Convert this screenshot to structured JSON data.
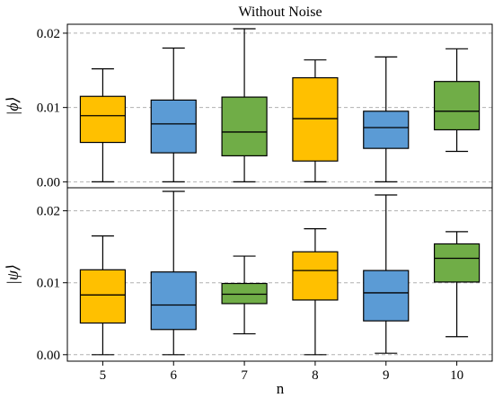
{
  "chart_data": [
    {
      "type": "box",
      "title": "Without Noise",
      "ylabel": "|ϕ⟩",
      "xlabel": "",
      "categories": [
        "5",
        "6",
        "7",
        "8",
        "9",
        "10"
      ],
      "ylim": [
        -0.0008,
        0.0212
      ],
      "yticks": [
        0.0,
        0.01,
        0.02
      ],
      "ytick_labels": [
        "0.00",
        "0.01",
        "0.02"
      ],
      "grid": "y-dashed",
      "boxes": [
        {
          "min": 0.0,
          "q1": 0.0053,
          "median": 0.0089,
          "q3": 0.0115,
          "max": 0.0152
        },
        {
          "min": 0.0,
          "q1": 0.0039,
          "median": 0.0078,
          "q3": 0.011,
          "max": 0.018
        },
        {
          "min": 0.0,
          "q1": 0.0035,
          "median": 0.0067,
          "q3": 0.0114,
          "max": 0.0206
        },
        {
          "min": 0.0,
          "q1": 0.0028,
          "median": 0.0085,
          "q3": 0.014,
          "max": 0.0164
        },
        {
          "min": 0.0,
          "q1": 0.0045,
          "median": 0.0073,
          "q3": 0.0095,
          "max": 0.0168
        },
        {
          "min": 0.0041,
          "q1": 0.007,
          "median": 0.0095,
          "q3": 0.0135,
          "max": 0.0179
        }
      ]
    },
    {
      "type": "box",
      "title": "",
      "ylabel": "|ψ⟩",
      "xlabel": "n",
      "categories": [
        "5",
        "6",
        "7",
        "8",
        "9",
        "10"
      ],
      "ylim": [
        -0.0009,
        0.0232
      ],
      "yticks": [
        0.0,
        0.01,
        0.02
      ],
      "ytick_labels": [
        "0.00",
        "0.01",
        "0.02"
      ],
      "grid": "y-dashed",
      "boxes": [
        {
          "min": 0.0,
          "q1": 0.0044,
          "median": 0.0083,
          "q3": 0.0118,
          "max": 0.0165
        },
        {
          "min": 0.0,
          "q1": 0.0035,
          "median": 0.0069,
          "q3": 0.0115,
          "max": 0.0227
        },
        {
          "min": 0.0029,
          "q1": 0.0071,
          "median": 0.0084,
          "q3": 0.0099,
          "max": 0.0137
        },
        {
          "min": 0.0,
          "q1": 0.0076,
          "median": 0.0117,
          "q3": 0.0143,
          "max": 0.0175
        },
        {
          "min": 0.0002,
          "q1": 0.0047,
          "median": 0.0086,
          "q3": 0.0117,
          "max": 0.0222
        },
        {
          "min": 0.0025,
          "q1": 0.0101,
          "median": 0.0134,
          "q3": 0.0154,
          "max": 0.0171
        }
      ]
    }
  ],
  "colors": {
    "yellow": "#FFC000",
    "blue": "#5B9BD5",
    "green": "#70AD47",
    "grid": "#b0b0b0",
    "box_order": [
      "yellow",
      "blue",
      "green",
      "yellow",
      "blue",
      "green"
    ]
  }
}
